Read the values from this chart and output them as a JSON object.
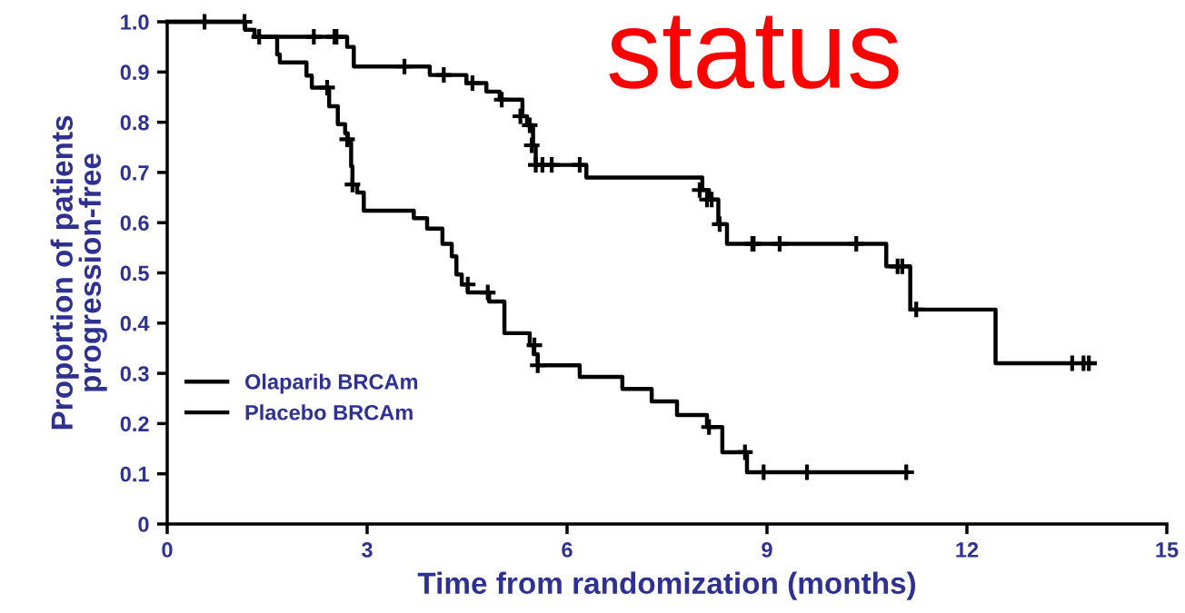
{
  "chart_data": {
    "type": "step",
    "xlabel": "Time from randomization (months)",
    "ylabel": "Proportion of patients\nprogression-free",
    "annotations": [
      "status"
    ],
    "xlim": [
      0,
      15
    ],
    "xticks": [
      0,
      3,
      6,
      9,
      12,
      15
    ],
    "ylim": [
      0,
      1.0
    ],
    "yticks": [
      0,
      0.1,
      0.2,
      0.3,
      0.4,
      0.5,
      0.6,
      0.7,
      0.8,
      0.9,
      {
        "value": 1.0,
        "label": "1.0"
      }
    ],
    "legend": "bottom left",
    "grid": false,
    "series": [
      {
        "name": "Olaparib BRCAm",
        "color": "#000000",
        "x": [
          0,
          1.17,
          1.31,
          2.7,
          2.8,
          3.94,
          4.49,
          4.79,
          4.99,
          5.33,
          5.4,
          5.49,
          5.53,
          6.29,
          8.03,
          8.13,
          8.27,
          8.4,
          10.79,
          11.15,
          12.43,
          13.92
        ],
        "values": [
          1.0,
          0.984,
          0.97,
          0.95,
          0.911,
          0.894,
          0.878,
          0.861,
          0.845,
          0.812,
          0.794,
          0.754,
          0.715,
          0.69,
          0.665,
          0.646,
          0.597,
          0.558,
          0.513,
          0.427,
          0.32,
          0.32
        ]
      },
      {
        "name": "Placebo BRCAm",
        "color": "#000000",
        "x": [
          0,
          1.17,
          1.31,
          1.65,
          1.69,
          2.09,
          2.17,
          2.43,
          2.56,
          2.67,
          2.71,
          2.76,
          2.78,
          2.85,
          2.95,
          3.7,
          3.9,
          4.13,
          4.27,
          4.34,
          4.42,
          4.51,
          4.83,
          5.06,
          5.44,
          5.5,
          5.56,
          6.19,
          6.83,
          7.27,
          7.65,
          8.1,
          8.33,
          8.7,
          11.09
        ],
        "values": [
          1.0,
          0.984,
          0.97,
          0.935,
          0.919,
          0.893,
          0.869,
          0.832,
          0.796,
          0.778,
          0.76,
          0.712,
          0.676,
          0.66,
          0.624,
          0.609,
          0.588,
          0.558,
          0.533,
          0.497,
          0.477,
          0.461,
          0.443,
          0.38,
          0.356,
          0.338,
          0.316,
          0.293,
          0.269,
          0.244,
          0.217,
          0.193,
          0.143,
          0.103,
          0.103
        ]
      },
      {
        "type": "scatter",
        "marker": "cross",
        "color": "#000000",
        "x": [
          0.56,
          1.16,
          1.38,
          2.2,
          2.51,
          2.54,
          3.56,
          4.15,
          4.58,
          5.02,
          5.3,
          5.44,
          5.47,
          5.53,
          5.63,
          5.77,
          6.19,
          7.99,
          8.1,
          8.17,
          8.29,
          8.78,
          8.8,
          9.19,
          10.34,
          10.96,
          11.03,
          11.24,
          13.58,
          13.75,
          13.83
        ],
        "values": [
          1.0,
          1.0,
          0.97,
          0.97,
          0.97,
          0.97,
          0.911,
          0.894,
          0.878,
          0.845,
          0.812,
          0.794,
          0.754,
          0.715,
          0.715,
          0.715,
          0.715,
          0.665,
          0.646,
          0.646,
          0.597,
          0.558,
          0.558,
          0.558,
          0.558,
          0.513,
          0.513,
          0.427,
          0.32,
          0.32,
          0.32
        ]
      },
      {
        "type": "scatter",
        "marker": "cross",
        "color": "#000000",
        "x": [
          2.4,
          2.7,
          2.78,
          4.51,
          4.81,
          5.51,
          5.56,
          8.13,
          8.67,
          8.95,
          9.6,
          11.09
        ],
        "values": [
          0.869,
          0.766,
          0.676,
          0.477,
          0.461,
          0.356,
          0.316,
          0.193,
          0.143,
          0.103,
          0.103,
          0.103
        ]
      }
    ]
  }
}
